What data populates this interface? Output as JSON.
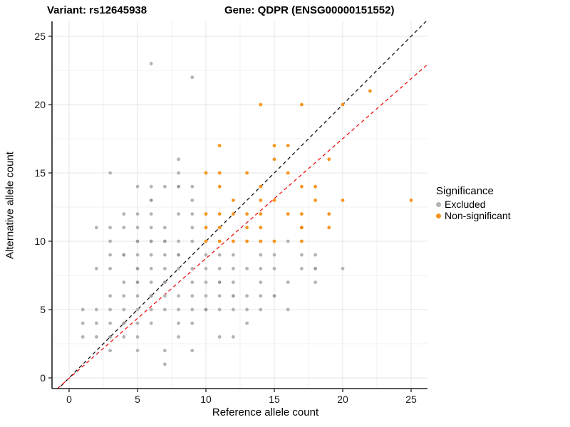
{
  "chart_data": {
    "type": "scatter",
    "title_left": "Variant: rs12645938",
    "title_right": "Gene: QDPR (ENSG00000151552)",
    "xlabel": "Reference allele count",
    "ylabel": "Alternative allele count",
    "x_ticks": [
      0,
      5,
      10,
      15,
      20,
      25
    ],
    "y_ticks": [
      0,
      5,
      10,
      15,
      20,
      25
    ],
    "minor_ticks": [
      2.5,
      7.5,
      12.5,
      17.5,
      22.5
    ],
    "xlim": [
      -1.25,
      26.2
    ],
    "ylim": [
      -0.8,
      26.1
    ],
    "grid": true,
    "colors": {
      "excluded": "#b3b3b3",
      "excluded_dark": "#9c9c9c",
      "non_significant": "#f7941e",
      "non_significant_dark": "#ee8400",
      "identity_line": "#111111",
      "fit_line": "#ee1111",
      "gridline_major": "#e4e4e4",
      "gridline_minor": "#f1f1f1",
      "axis_line": "#222222",
      "tick_text": "#1a1a1a"
    },
    "legend": {
      "title": "Significance",
      "position": "right",
      "items": [
        {
          "label": "Excluded",
          "color": "#b3b3b3"
        },
        {
          "label": "Non-significant",
          "color": "#f7941e"
        }
      ]
    },
    "lines": [
      {
        "name": "identity",
        "slope": 1,
        "intercept": 0,
        "style": "dashed",
        "color_key": "identity_line"
      },
      {
        "name": "fit",
        "slope": 0.877,
        "intercept": -0.03,
        "style": "dashed",
        "color_key": "fit_line"
      }
    ],
    "series": [
      {
        "name": "Excluded",
        "color_key": "excluded",
        "points": [
          [
            6,
            23
          ],
          [
            9,
            22
          ],
          [
            8,
            16
          ],
          [
            3,
            15
          ],
          [
            8,
            15
          ],
          [
            5,
            14
          ],
          [
            6,
            14
          ],
          [
            7,
            14
          ],
          [
            8,
            14,
            1
          ],
          [
            9,
            14
          ],
          [
            6,
            13,
            1
          ],
          [
            9,
            13
          ],
          [
            4,
            12
          ],
          [
            5,
            12
          ],
          [
            6,
            12
          ],
          [
            8,
            12
          ],
          [
            9,
            12
          ],
          [
            2,
            11
          ],
          [
            3,
            11
          ],
          [
            4,
            11
          ],
          [
            5,
            11
          ],
          [
            6,
            11
          ],
          [
            7,
            11
          ],
          [
            9,
            11
          ],
          [
            3,
            10
          ],
          [
            5,
            10,
            1
          ],
          [
            6,
            10,
            1
          ],
          [
            7,
            10,
            1
          ],
          [
            8,
            10
          ],
          [
            9,
            10
          ],
          [
            16,
            10
          ],
          [
            3,
            9
          ],
          [
            4,
            9,
            1
          ],
          [
            5,
            9
          ],
          [
            6,
            9
          ],
          [
            7,
            9
          ],
          [
            8,
            9,
            1
          ],
          [
            10,
            9
          ],
          [
            11,
            9
          ],
          [
            12,
            9
          ],
          [
            14,
            9
          ],
          [
            15,
            9
          ],
          [
            17,
            9
          ],
          [
            18,
            9
          ],
          [
            2,
            8
          ],
          [
            3,
            8
          ],
          [
            5,
            8,
            1
          ],
          [
            6,
            8
          ],
          [
            7,
            8
          ],
          [
            8,
            8
          ],
          [
            9,
            8
          ],
          [
            10,
            8
          ],
          [
            11,
            8
          ],
          [
            12,
            8
          ],
          [
            13,
            8
          ],
          [
            14,
            8
          ],
          [
            15,
            8
          ],
          [
            17,
            8
          ],
          [
            18,
            8,
            1
          ],
          [
            20,
            8
          ],
          [
            4,
            7
          ],
          [
            5,
            7,
            1
          ],
          [
            6,
            7
          ],
          [
            7,
            7,
            1
          ],
          [
            9,
            7
          ],
          [
            10,
            7
          ],
          [
            11,
            7,
            1
          ],
          [
            12,
            7
          ],
          [
            14,
            7
          ],
          [
            16,
            7
          ],
          [
            18,
            7
          ],
          [
            3,
            6
          ],
          [
            4,
            6
          ],
          [
            5,
            6
          ],
          [
            6,
            6,
            1
          ],
          [
            7,
            6
          ],
          [
            8,
            6
          ],
          [
            9,
            6
          ],
          [
            10,
            6
          ],
          [
            11,
            6
          ],
          [
            12,
            6,
            1
          ],
          [
            13,
            6
          ],
          [
            14,
            6
          ],
          [
            15,
            6,
            1
          ],
          [
            1,
            5
          ],
          [
            2,
            5
          ],
          [
            3,
            5
          ],
          [
            4,
            5
          ],
          [
            5,
            5
          ],
          [
            6,
            5
          ],
          [
            7,
            5
          ],
          [
            8,
            5
          ],
          [
            9,
            5
          ],
          [
            10,
            5,
            1
          ],
          [
            11,
            5
          ],
          [
            12,
            5
          ],
          [
            13,
            5
          ],
          [
            14,
            5
          ],
          [
            16,
            5
          ],
          [
            1,
            4
          ],
          [
            2,
            4
          ],
          [
            3,
            4
          ],
          [
            4,
            4,
            1
          ],
          [
            5,
            4
          ],
          [
            6,
            4
          ],
          [
            8,
            4
          ],
          [
            9,
            4
          ],
          [
            13,
            4
          ],
          [
            1,
            3
          ],
          [
            2,
            3
          ],
          [
            3,
            3,
            1
          ],
          [
            4,
            3
          ],
          [
            5,
            3
          ],
          [
            8,
            3
          ],
          [
            11,
            3
          ],
          [
            12,
            3
          ],
          [
            3,
            2
          ],
          [
            5,
            2
          ],
          [
            7,
            2
          ],
          [
            9,
            2
          ],
          [
            7,
            1
          ]
        ]
      },
      {
        "name": "Non-significant",
        "color_key": "non_significant",
        "points": [
          [
            22,
            21
          ],
          [
            14,
            20
          ],
          [
            17,
            20
          ],
          [
            20,
            20
          ],
          [
            11,
            17
          ],
          [
            15,
            17
          ],
          [
            16,
            17
          ],
          [
            15,
            16
          ],
          [
            19,
            16
          ],
          [
            10,
            15
          ],
          [
            11,
            15
          ],
          [
            13,
            15
          ],
          [
            16,
            15
          ],
          [
            11,
            14
          ],
          [
            14,
            14
          ],
          [
            17,
            14
          ],
          [
            18,
            14
          ],
          [
            12,
            13
          ],
          [
            14,
            13
          ],
          [
            15,
            13
          ],
          [
            18,
            13
          ],
          [
            20,
            13
          ],
          [
            25,
            13
          ],
          [
            10,
            12
          ],
          [
            11,
            12
          ],
          [
            12,
            12
          ],
          [
            13,
            12
          ],
          [
            14,
            12
          ],
          [
            16,
            12
          ],
          [
            17,
            12
          ],
          [
            19,
            12
          ],
          [
            10,
            11
          ],
          [
            11,
            11
          ],
          [
            13,
            11
          ],
          [
            14,
            11
          ],
          [
            17,
            11,
            1
          ],
          [
            19,
            11
          ],
          [
            10,
            10
          ],
          [
            11,
            10
          ],
          [
            12,
            10
          ],
          [
            13,
            10
          ],
          [
            14,
            10
          ],
          [
            15,
            10
          ],
          [
            17,
            10
          ]
        ]
      }
    ]
  }
}
